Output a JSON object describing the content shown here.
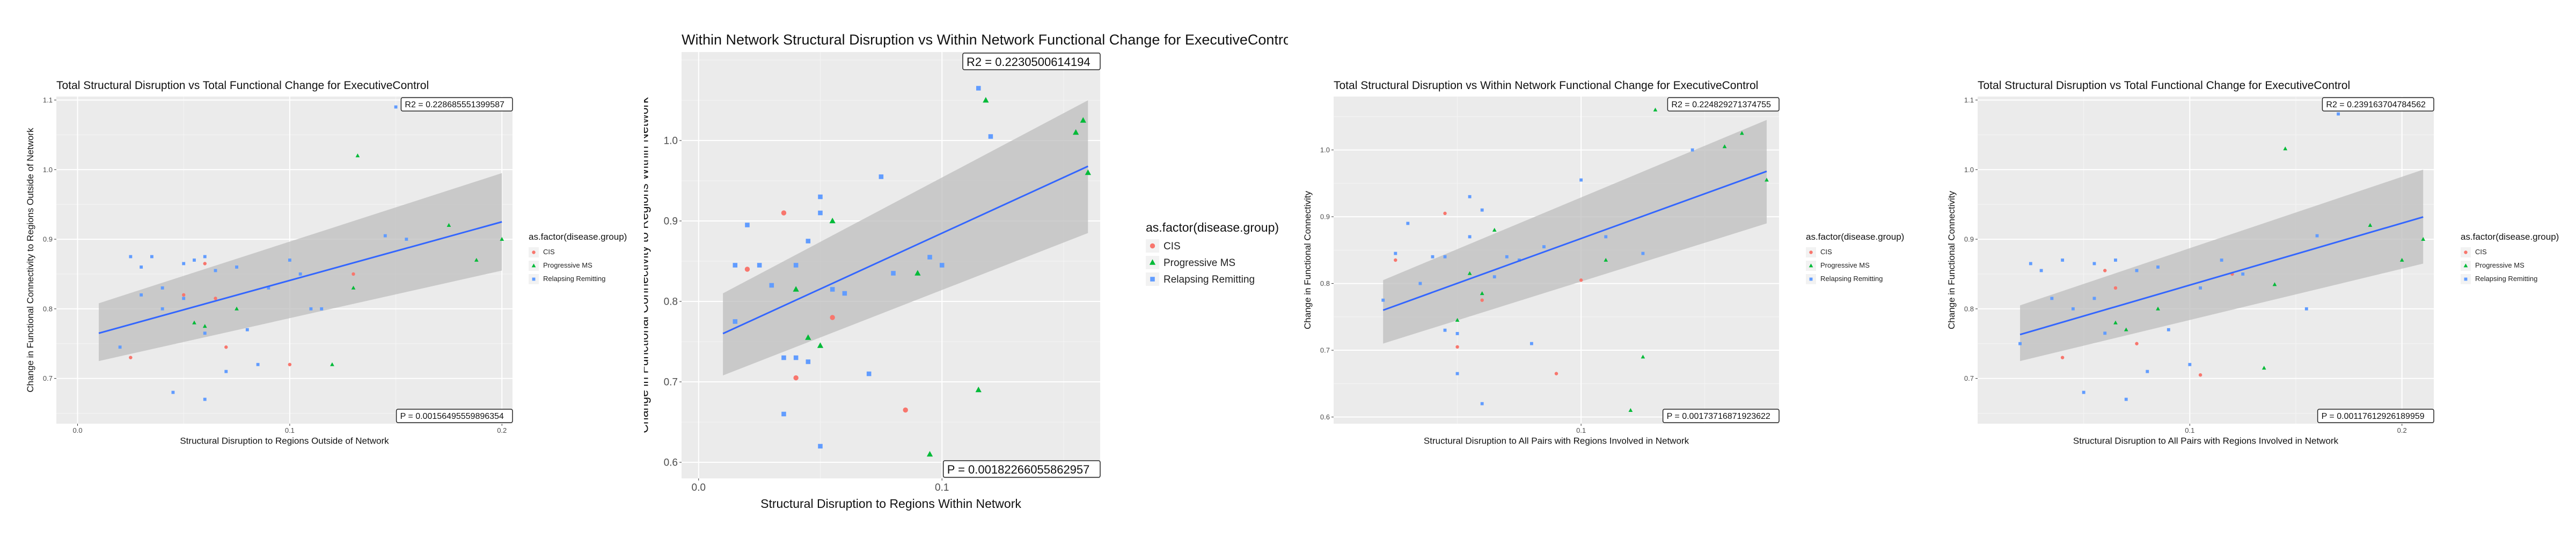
{
  "colors": {
    "panel_bg": "#ebebeb",
    "grid_major": "#ffffff",
    "band": "#bdbdbd",
    "line": "#3366ff",
    "CIS": "#f8766d",
    "Progressive MS": "#00ba38",
    "Relapsing Remitting": "#619cff"
  },
  "chart_data": [
    {
      "type": "scatter",
      "title": "Total Structural Disruption vs Total Functional Change for ExecutiveControl",
      "xlabel": "Structural Disruption to Regions Outside of Network",
      "ylabel": "Change in Functional Connectivity to Regions Outside of Network",
      "xlim": [
        -0.01,
        0.205
      ],
      "ylim": [
        0.635,
        1.105
      ],
      "xticks": [
        0.0,
        0.1,
        0.2
      ],
      "xtick_labels": [
        "0.0",
        "0.1",
        "0.2"
      ],
      "yticks": [
        0.7,
        0.8,
        0.9,
        1.0,
        1.1
      ],
      "ytick_labels": [
        "0.7",
        "0.8",
        "0.9",
        "1.0",
        "1.1"
      ],
      "r2_label": "R2 = 0.228685551399587",
      "p_label": "P = 0.00156495559896354",
      "legend_title": "as.factor(disease.group)",
      "legend": [
        "CIS",
        "Progressive MS",
        "Relapsing Remitting"
      ],
      "regression": {
        "x": [
          0.01,
          0.2
        ],
        "y": [
          0.765,
          0.925
        ],
        "lower": [
          0.725,
          0.855
        ],
        "upper": [
          0.808,
          0.995
        ]
      },
      "series": [
        {
          "name": "CIS",
          "shape": "circle",
          "x": [
            0.025,
            0.05,
            0.06,
            0.065,
            0.07,
            0.1,
            0.13
          ],
          "y": [
            0.73,
            0.82,
            0.865,
            0.815,
            0.745,
            0.72,
            0.85
          ]
        },
        {
          "name": "Progressive MS",
          "shape": "triangle",
          "x": [
            0.055,
            0.06,
            0.075,
            0.12,
            0.13,
            0.132,
            0.175,
            0.188,
            0.2
          ],
          "y": [
            0.78,
            0.775,
            0.8,
            0.72,
            0.83,
            1.02,
            0.92,
            0.87,
            0.9
          ]
        },
        {
          "name": "Relapsing Remitting",
          "shape": "square",
          "x": [
            0.02,
            0.025,
            0.03,
            0.03,
            0.035,
            0.04,
            0.04,
            0.045,
            0.05,
            0.05,
            0.055,
            0.06,
            0.06,
            0.06,
            0.065,
            0.07,
            0.075,
            0.08,
            0.085,
            0.09,
            0.1,
            0.105,
            0.11,
            0.115,
            0.145,
            0.15,
            0.155
          ],
          "y": [
            0.745,
            0.875,
            0.86,
            0.82,
            0.875,
            0.83,
            0.8,
            0.68,
            0.865,
            0.815,
            0.87,
            0.765,
            0.875,
            0.67,
            0.855,
            0.71,
            0.86,
            0.77,
            0.72,
            0.83,
            0.87,
            0.85,
            0.8,
            0.8,
            0.905,
            1.09,
            0.9
          ]
        }
      ]
    },
    {
      "type": "scatter",
      "title": "Within Network Structural Disruption vs Within Network Functional Change for ExecutiveContro",
      "xlabel": "Structural Disruption to Regions Within Network",
      "ylabel": "Change in Functional Connectivity to Regions Within Network",
      "xlim": [
        -0.007,
        0.165
      ],
      "ylim": [
        0.58,
        1.11
      ],
      "xticks": [
        0.0,
        0.1
      ],
      "xtick_labels": [
        "0.0",
        "0.1"
      ],
      "yticks": [
        0.6,
        0.7,
        0.8,
        0.9,
        1.0
      ],
      "ytick_labels": [
        "0.6",
        "0.7",
        "0.8",
        "0.9",
        "1.0"
      ],
      "r2_label": "R2 = 0.2230500614194",
      "p_label": "P = 0.00182266055862957",
      "legend_title": "as.factor(disease.group)",
      "legend": [
        "CIS",
        "Progressive MS",
        "Relapsing Remitting"
      ],
      "regression": {
        "x": [
          0.01,
          0.16
        ],
        "y": [
          0.76,
          0.968
        ],
        "lower": [
          0.708,
          0.885
        ],
        "upper": [
          0.81,
          1.05
        ]
      },
      "series": [
        {
          "name": "CIS",
          "shape": "circle",
          "x": [
            0.02,
            0.035,
            0.04,
            0.055,
            0.085
          ],
          "y": [
            0.84,
            0.91,
            0.705,
            0.78,
            0.665
          ]
        },
        {
          "name": "Progressive MS",
          "shape": "triangle",
          "x": [
            0.04,
            0.045,
            0.05,
            0.055,
            0.09,
            0.095,
            0.115,
            0.118,
            0.155,
            0.158,
            0.16
          ],
          "y": [
            0.815,
            0.755,
            0.745,
            0.9,
            0.835,
            0.61,
            0.69,
            1.05,
            1.01,
            1.025,
            0.96
          ]
        },
        {
          "name": "Relapsing Remitting",
          "shape": "square",
          "x": [
            0.015,
            0.015,
            0.02,
            0.025,
            0.03,
            0.035,
            0.035,
            0.04,
            0.04,
            0.045,
            0.045,
            0.05,
            0.05,
            0.05,
            0.055,
            0.06,
            0.07,
            0.075,
            0.08,
            0.095,
            0.1,
            0.115,
            0.12
          ],
          "y": [
            0.775,
            0.845,
            0.895,
            0.845,
            0.82,
            0.66,
            0.73,
            0.73,
            0.845,
            0.725,
            0.875,
            0.91,
            0.93,
            0.62,
            0.815,
            0.81,
            0.71,
            0.955,
            0.835,
            0.855,
            0.845,
            1.065,
            1.005
          ]
        }
      ]
    },
    {
      "type": "scatter",
      "title": "Total Structural Disruption vs Within Network Functional Change for ExecutiveControl",
      "xlabel": "Structural Disruption to All Pairs with Regions Involved in Network",
      "ylabel": "Change in Functional Connectivity",
      "xlim": [
        0.0,
        0.18
      ],
      "ylim": [
        0.59,
        1.08
      ],
      "xticks": [
        0.1
      ],
      "xtick_labels": [
        "0.1"
      ],
      "yticks": [
        0.6,
        0.7,
        0.8,
        0.9,
        1.0
      ],
      "ytick_labels": [
        "0.6",
        "0.7",
        "0.8",
        "0.9",
        "1.0"
      ],
      "r2_label": "R2 = 0.224829271374755",
      "p_label": "P = 0.00173716871923622",
      "legend_title": "as.factor(disease.group)",
      "legend": [
        "CIS",
        "Progressive MS",
        "Relapsing Remitting"
      ],
      "regression": {
        "x": [
          0.02,
          0.175
        ],
        "y": [
          0.76,
          0.968
        ],
        "lower": [
          0.71,
          0.89
        ],
        "upper": [
          0.805,
          1.045
        ]
      },
      "series": [
        {
          "name": "CIS",
          "shape": "circle",
          "x": [
            0.025,
            0.045,
            0.05,
            0.06,
            0.09,
            0.1
          ],
          "y": [
            0.835,
            0.905,
            0.705,
            0.775,
            0.665,
            0.805
          ]
        },
        {
          "name": "Progressive MS",
          "shape": "triangle",
          "x": [
            0.05,
            0.055,
            0.06,
            0.065,
            0.11,
            0.12,
            0.125,
            0.13,
            0.158,
            0.165,
            0.175
          ],
          "y": [
            0.745,
            0.815,
            0.785,
            0.88,
            0.835,
            0.61,
            0.69,
            1.06,
            1.005,
            1.025,
            0.955
          ]
        },
        {
          "name": "Relapsing Remitting",
          "shape": "square",
          "x": [
            0.02,
            0.025,
            0.03,
            0.035,
            0.04,
            0.045,
            0.045,
            0.05,
            0.05,
            0.055,
            0.055,
            0.06,
            0.06,
            0.065,
            0.07,
            0.075,
            0.08,
            0.085,
            0.1,
            0.11,
            0.125,
            0.14,
            0.145
          ],
          "y": [
            0.775,
            0.845,
            0.89,
            0.8,
            0.84,
            0.73,
            0.84,
            0.665,
            0.725,
            0.87,
            0.93,
            0.62,
            0.91,
            0.81,
            0.84,
            0.835,
            0.71,
            0.855,
            0.955,
            0.87,
            0.845,
            1.07,
            1.0
          ]
        }
      ]
    },
    {
      "type": "scatter",
      "title": "Total Structural Disruption vs Total Functional Change for ExecutiveControl",
      "xlabel": "Structural Disruption to All Pairs with Regions Involved in Network",
      "ylabel": "Change in Functional Connectivity",
      "xlim": [
        0.0,
        0.215
      ],
      "ylim": [
        0.635,
        1.105
      ],
      "xticks": [
        0.1,
        0.2
      ],
      "xtick_labels": [
        "0.1",
        "0.2"
      ],
      "yticks": [
        0.7,
        0.8,
        0.9,
        1.0,
        1.1
      ],
      "ytick_labels": [
        "0.7",
        "0.8",
        "0.9",
        "1.0",
        "1.1"
      ],
      "r2_label": "R2 = 0.239163704784562",
      "p_label": "P = 0.00117612926189959",
      "legend_title": "as.factor(disease.group)",
      "legend": [
        "CIS",
        "Progressive MS",
        "Relapsing Remitting"
      ],
      "regression": {
        "x": [
          0.02,
          0.21
        ],
        "y": [
          0.763,
          0.932
        ],
        "lower": [
          0.725,
          0.865
        ],
        "upper": [
          0.805,
          1.0
        ]
      },
      "series": [
        {
          "name": "CIS",
          "shape": "circle",
          "x": [
            0.04,
            0.06,
            0.065,
            0.075,
            0.105,
            0.12
          ],
          "y": [
            0.73,
            0.855,
            0.83,
            0.75,
            0.705,
            0.85
          ]
        },
        {
          "name": "Progressive MS",
          "shape": "triangle",
          "x": [
            0.065,
            0.07,
            0.085,
            0.135,
            0.14,
            0.145,
            0.185,
            0.2,
            0.21
          ],
          "y": [
            0.78,
            0.77,
            0.8,
            0.715,
            0.835,
            1.03,
            0.92,
            0.87,
            0.9
          ]
        },
        {
          "name": "Relapsing Remitting",
          "shape": "square",
          "x": [
            0.02,
            0.025,
            0.03,
            0.035,
            0.04,
            0.045,
            0.05,
            0.055,
            0.055,
            0.06,
            0.065,
            0.07,
            0.075,
            0.08,
            0.085,
            0.09,
            0.1,
            0.105,
            0.115,
            0.125,
            0.155,
            0.16,
            0.17
          ],
          "y": [
            0.75,
            0.865,
            0.855,
            0.815,
            0.87,
            0.8,
            0.68,
            0.865,
            0.815,
            0.765,
            0.87,
            0.67,
            0.855,
            0.71,
            0.86,
            0.77,
            0.72,
            0.83,
            0.87,
            0.85,
            0.8,
            0.905,
            1.08
          ]
        }
      ]
    }
  ]
}
